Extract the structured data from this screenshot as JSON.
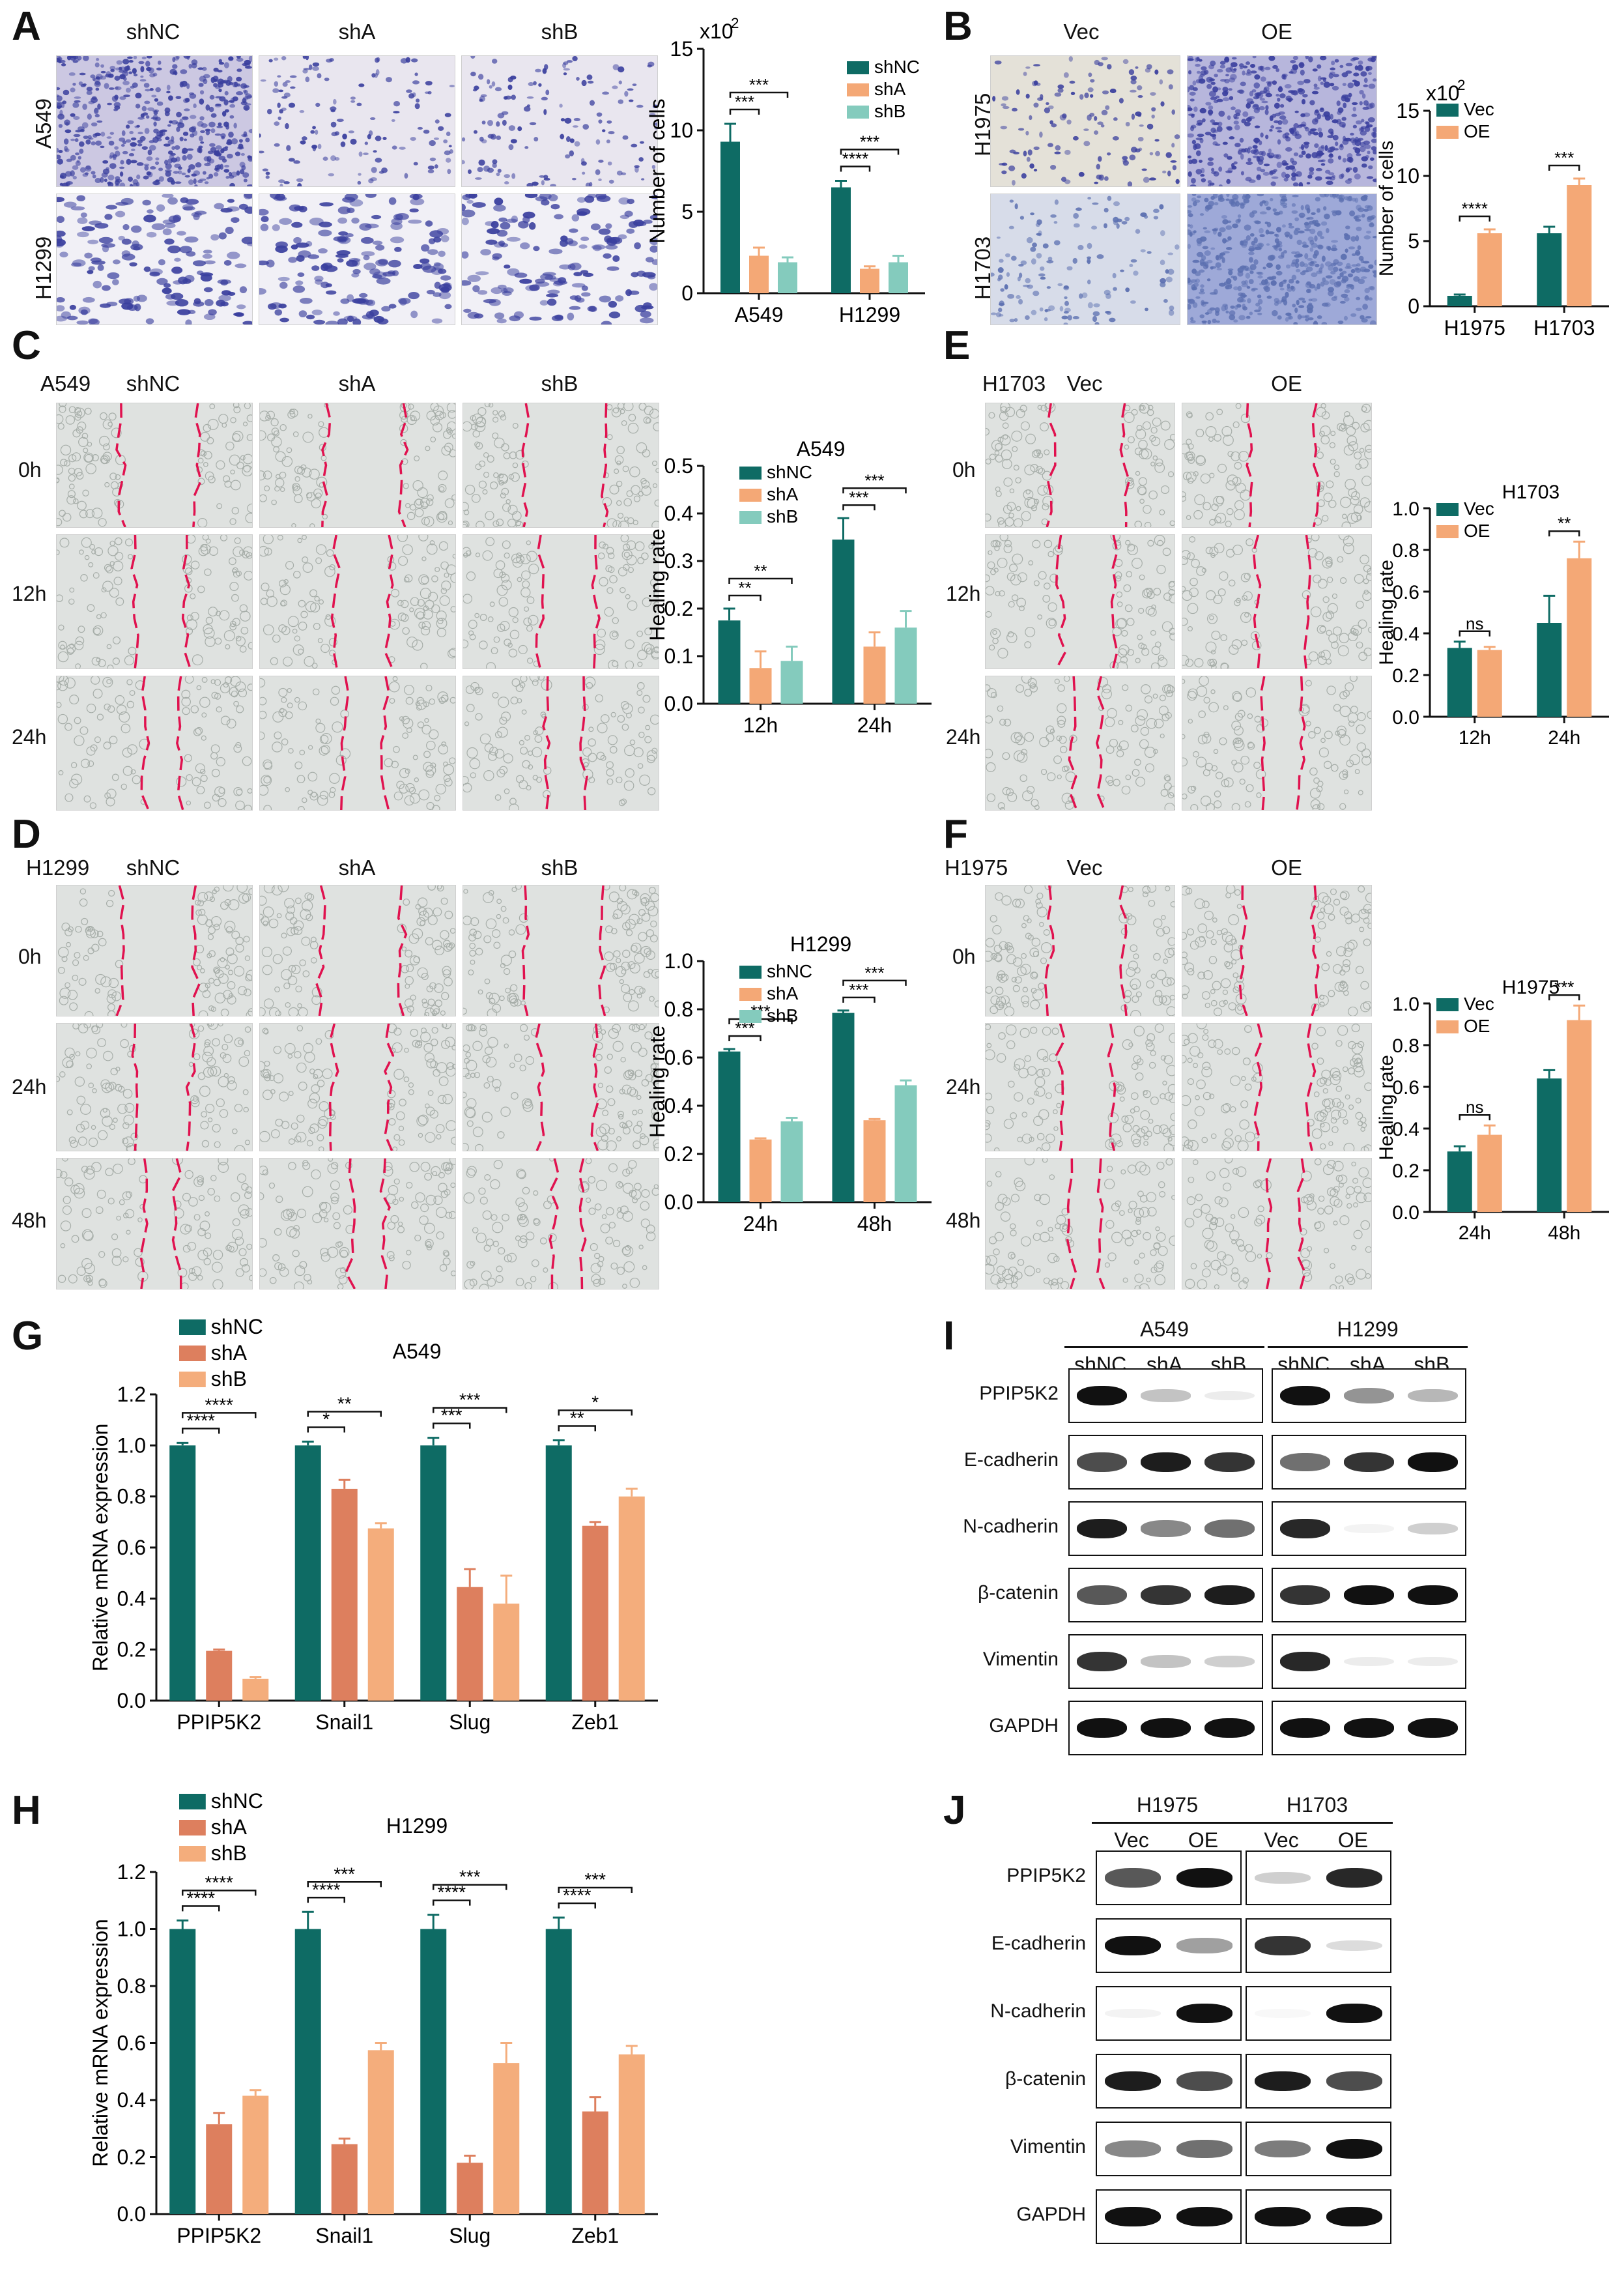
{
  "panels": {
    "A": {
      "letter": "A",
      "columns": [
        "shNC",
        "shA",
        "shB"
      ],
      "rows": [
        "A549",
        "H1299"
      ],
      "chart_data": {
        "type": "bar",
        "title": "",
        "multiplier": "x10",
        "multiplier_exp": "2",
        "ylabel": "Number of cells",
        "ylim": [
          0,
          15
        ],
        "yticks": [
          0,
          5,
          10,
          15
        ],
        "categories": [
          "A549",
          "H1299"
        ],
        "series": [
          {
            "name": "shNC",
            "color": "#0e6b64",
            "values": [
              9.3,
              6.5
            ],
            "errors": [
              1.1,
              0.4
            ]
          },
          {
            "name": "shA",
            "color": "#f4a876",
            "values": [
              2.3,
              1.5
            ],
            "errors": [
              0.5,
              0.15
            ]
          },
          {
            "name": "shB",
            "color": "#84cbbd",
            "values": [
              1.9,
              1.9
            ],
            "errors": [
              0.3,
              0.4
            ]
          }
        ],
        "significance": [
          {
            "category": 0,
            "from": 0,
            "to": 1,
            "label": "***"
          },
          {
            "category": 0,
            "from": 0,
            "to": 2,
            "label": "***"
          },
          {
            "category": 1,
            "from": 0,
            "to": 1,
            "label": "****"
          },
          {
            "category": 1,
            "from": 0,
            "to": 2,
            "label": "***"
          }
        ],
        "legend": "top-right"
      }
    },
    "B": {
      "letter": "B",
      "columns": [
        "Vec",
        "OE"
      ],
      "rows": [
        "H1975",
        "H1703"
      ],
      "chart_data": {
        "type": "bar",
        "title": "",
        "multiplier": "x10",
        "multiplier_exp": "2",
        "ylabel": "Number of cells",
        "ylim": [
          0,
          15
        ],
        "yticks": [
          0,
          5,
          10,
          15
        ],
        "categories": [
          "H1975",
          "H1703"
        ],
        "series": [
          {
            "name": "Vec",
            "color": "#0e6b64",
            "values": [
              0.8,
              5.6
            ],
            "errors": [
              0.1,
              0.5
            ]
          },
          {
            "name": "OE",
            "color": "#f4a876",
            "values": [
              5.6,
              9.3
            ],
            "errors": [
              0.3,
              0.5
            ]
          }
        ],
        "significance": [
          {
            "category": 0,
            "from": 0,
            "to": 1,
            "label": "****"
          },
          {
            "category": 1,
            "from": 0,
            "to": 1,
            "label": "***"
          }
        ],
        "legend": "top-left"
      }
    },
    "C": {
      "letter": "C",
      "cell_line": "A549",
      "columns": [
        "shNC",
        "shA",
        "shB"
      ],
      "rows": [
        "0h",
        "12h",
        "24h"
      ],
      "chart_data": {
        "type": "bar",
        "title": "A549",
        "ylabel": "Healing rate",
        "ylim": [
          0,
          0.5
        ],
        "yticks": [
          "0.0",
          "0.1",
          "0.2",
          "0.3",
          "0.4",
          "0.5"
        ],
        "categories": [
          "12h",
          "24h"
        ],
        "series": [
          {
            "name": "shNC",
            "color": "#0e6b64",
            "values": [
              0.175,
              0.345
            ],
            "errors": [
              0.025,
              0.045
            ]
          },
          {
            "name": "shA",
            "color": "#f4a876",
            "values": [
              0.075,
              0.12
            ],
            "errors": [
              0.035,
              0.03
            ]
          },
          {
            "name": "shB",
            "color": "#84cbbd",
            "values": [
              0.09,
              0.16
            ],
            "errors": [
              0.03,
              0.035
            ]
          }
        ],
        "significance": [
          {
            "category": 0,
            "from": 0,
            "to": 1,
            "label": "**"
          },
          {
            "category": 0,
            "from": 0,
            "to": 2,
            "label": "**"
          },
          {
            "category": 1,
            "from": 0,
            "to": 1,
            "label": "***"
          },
          {
            "category": 1,
            "from": 0,
            "to": 2,
            "label": "***"
          }
        ],
        "legend": "top-left"
      }
    },
    "D": {
      "letter": "D",
      "cell_line": "H1299",
      "columns": [
        "shNC",
        "shA",
        "shB"
      ],
      "rows": [
        "0h",
        "24h",
        "48h"
      ],
      "chart_data": {
        "type": "bar",
        "title": "H1299",
        "ylabel": "Healing rate",
        "ylim": [
          0,
          1.0
        ],
        "yticks": [
          "0.0",
          "0.2",
          "0.4",
          "0.6",
          "0.8",
          "1.0"
        ],
        "categories": [
          "24h",
          "48h"
        ],
        "series": [
          {
            "name": "shNC",
            "color": "#0e6b64",
            "values": [
              0.625,
              0.785
            ],
            "errors": [
              0.01,
              0.01
            ]
          },
          {
            "name": "shA",
            "color": "#f4a876",
            "values": [
              0.26,
              0.34
            ],
            "errors": [
              0.005,
              0.005
            ]
          },
          {
            "name": "shB",
            "color": "#84cbbd",
            "values": [
              0.335,
              0.485
            ],
            "errors": [
              0.015,
              0.02
            ]
          }
        ],
        "significance": [
          {
            "category": 0,
            "from": 0,
            "to": 1,
            "label": "***"
          },
          {
            "category": 0,
            "from": 0,
            "to": 2,
            "label": "***"
          },
          {
            "category": 1,
            "from": 0,
            "to": 1,
            "label": "***"
          },
          {
            "category": 1,
            "from": 0,
            "to": 2,
            "label": "***"
          }
        ],
        "legend": "top-left"
      }
    },
    "E": {
      "letter": "E",
      "cell_line": "H1703",
      "columns": [
        "Vec",
        "OE"
      ],
      "rows": [
        "0h",
        "12h",
        "24h"
      ],
      "chart_data": {
        "type": "bar",
        "title": "H1703",
        "ylabel": "Healing rate",
        "ylim": [
          0,
          1.0
        ],
        "yticks": [
          "0.0",
          "0.2",
          "0.4",
          "0.6",
          "0.8",
          "1.0"
        ],
        "categories": [
          "12h",
          "24h"
        ],
        "series": [
          {
            "name": "Vec",
            "color": "#0e6b64",
            "values": [
              0.33,
              0.45
            ],
            "errors": [
              0.03,
              0.13
            ]
          },
          {
            "name": "OE",
            "color": "#f4a876",
            "values": [
              0.32,
              0.76
            ],
            "errors": [
              0.015,
              0.08
            ]
          }
        ],
        "significance": [
          {
            "category": 0,
            "from": 0,
            "to": 1,
            "label": "ns"
          },
          {
            "category": 1,
            "from": 0,
            "to": 1,
            "label": "**"
          }
        ],
        "legend": "top-left"
      }
    },
    "F": {
      "letter": "F",
      "cell_line": "H1975",
      "columns": [
        "Vec",
        "OE"
      ],
      "rows": [
        "0h",
        "24h",
        "48h"
      ],
      "chart_data": {
        "type": "bar",
        "title": "H1975",
        "ylabel": "Healing rate",
        "ylim": [
          0,
          1.0
        ],
        "yticks": [
          "0.0",
          "0.2",
          "0.4",
          "0.6",
          "0.8",
          "1.0"
        ],
        "categories": [
          "24h",
          "48h"
        ],
        "series": [
          {
            "name": "Vec",
            "color": "#0e6b64",
            "values": [
              0.29,
              0.64
            ],
            "errors": [
              0.025,
              0.04
            ]
          },
          {
            "name": "OE",
            "color": "#f4a876",
            "values": [
              0.37,
              0.92
            ],
            "errors": [
              0.045,
              0.07
            ]
          }
        ],
        "significance": [
          {
            "category": 0,
            "from": 0,
            "to": 1,
            "label": "ns"
          },
          {
            "category": 1,
            "from": 0,
            "to": 1,
            "label": "***"
          }
        ],
        "legend": "top-left"
      }
    },
    "G": {
      "letter": "G",
      "chart_data": {
        "type": "bar",
        "title": "A549",
        "ylabel": "Relative mRNA expression",
        "ylim": [
          0,
          1.2
        ],
        "yticks": [
          "0.0",
          "0.2",
          "0.4",
          "0.6",
          "0.8",
          "1.0",
          "1.2"
        ],
        "categories": [
          "PPIP5K2",
          "Snail1",
          "Slug",
          "Zeb1"
        ],
        "series": [
          {
            "name": "shNC",
            "color": "#0e6b64",
            "values": [
              1.0,
              1.0,
              1.0,
              1.0
            ],
            "errors": [
              0.01,
              0.015,
              0.03,
              0.02
            ]
          },
          {
            "name": "shA",
            "color": "#dd7f5e",
            "values": [
              0.195,
              0.83,
              0.445,
              0.685
            ],
            "errors": [
              0.005,
              0.035,
              0.07,
              0.015
            ]
          },
          {
            "name": "shB",
            "color": "#f4ad7c",
            "values": [
              0.085,
              0.675,
              0.38,
              0.8
            ],
            "errors": [
              0.008,
              0.02,
              0.11,
              0.03
            ]
          }
        ],
        "significance": [
          {
            "category": 0,
            "from": 0,
            "to": 1,
            "label": "****"
          },
          {
            "category": 0,
            "from": 0,
            "to": 2,
            "label": "****"
          },
          {
            "category": 1,
            "from": 0,
            "to": 1,
            "label": "*"
          },
          {
            "category": 1,
            "from": 0,
            "to": 2,
            "label": "**"
          },
          {
            "category": 2,
            "from": 0,
            "to": 1,
            "label": "***"
          },
          {
            "category": 2,
            "from": 0,
            "to": 2,
            "label": "***"
          },
          {
            "category": 3,
            "from": 0,
            "to": 1,
            "label": "**"
          },
          {
            "category": 3,
            "from": 0,
            "to": 2,
            "label": "*"
          }
        ],
        "legend": "top-left"
      }
    },
    "H": {
      "letter": "H",
      "chart_data": {
        "type": "bar",
        "title": "H1299",
        "ylabel": "Relative mRNA expression",
        "ylim": [
          0,
          1.2
        ],
        "yticks": [
          "0.0",
          "0.2",
          "0.4",
          "0.6",
          "0.8",
          "1.0",
          "1.2"
        ],
        "categories": [
          "PPIP5K2",
          "Snail1",
          "Slug",
          "Zeb1"
        ],
        "series": [
          {
            "name": "shNC",
            "color": "#0e6b64",
            "values": [
              1.0,
              1.0,
              1.0,
              1.0
            ],
            "errors": [
              0.03,
              0.06,
              0.05,
              0.04
            ]
          },
          {
            "name": "shA",
            "color": "#dd7f5e",
            "values": [
              0.315,
              0.245,
              0.18,
              0.36
            ],
            "errors": [
              0.04,
              0.02,
              0.025,
              0.05
            ]
          },
          {
            "name": "shB",
            "color": "#f4ad7c",
            "values": [
              0.415,
              0.575,
              0.53,
              0.56
            ],
            "errors": [
              0.02,
              0.025,
              0.07,
              0.03
            ]
          }
        ],
        "significance": [
          {
            "category": 0,
            "from": 0,
            "to": 1,
            "label": "****"
          },
          {
            "category": 0,
            "from": 0,
            "to": 2,
            "label": "****"
          },
          {
            "category": 1,
            "from": 0,
            "to": 1,
            "label": "****"
          },
          {
            "category": 1,
            "from": 0,
            "to": 2,
            "label": "***"
          },
          {
            "category": 2,
            "from": 0,
            "to": 1,
            "label": "****"
          },
          {
            "category": 2,
            "from": 0,
            "to": 2,
            "label": "***"
          },
          {
            "category": 3,
            "from": 0,
            "to": 1,
            "label": "****"
          },
          {
            "category": 3,
            "from": 0,
            "to": 2,
            "label": "***"
          }
        ],
        "legend": "top-left"
      }
    },
    "I": {
      "letter": "I",
      "groups": [
        {
          "name": "A549",
          "lanes": [
            "shNC",
            "shA",
            "shB"
          ]
        },
        {
          "name": "H1299",
          "lanes": [
            "shNC",
            "shA",
            "shB"
          ]
        }
      ],
      "proteins": [
        "PPIP5K2",
        "E-cadherin",
        "N-cadherin",
        "β-catenin",
        "Vimentin",
        "GAPDH"
      ]
    },
    "J": {
      "letter": "J",
      "groups": [
        {
          "name": "H1975",
          "lanes": [
            "Vec",
            "OE"
          ]
        },
        {
          "name": "H1703",
          "lanes": [
            "Vec",
            "OE"
          ]
        }
      ],
      "proteins": [
        "PPIP5K2",
        "E-cadherin",
        "N-cadherin",
        "β-catenin",
        "Vimentin",
        "GAPDH"
      ]
    }
  }
}
